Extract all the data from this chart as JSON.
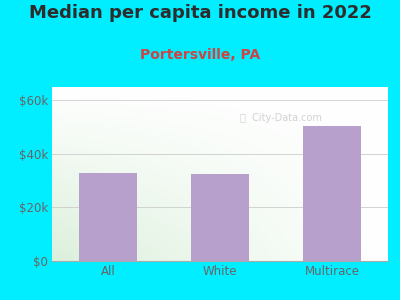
{
  "title": "Median per capita income in 2022",
  "subtitle": "Portersville, PA",
  "categories": [
    "All",
    "White",
    "Multirace"
  ],
  "values": [
    33000,
    32500,
    50500
  ],
  "bar_color": "#b8a0cc",
  "title_color": "#2d2d2d",
  "subtitle_color": "#cc4444",
  "tick_color": "#666666",
  "background_outer": "#00eeff",
  "ylim": [
    0,
    65000
  ],
  "yticks": [
    0,
    20000,
    40000,
    60000
  ],
  "ytick_labels": [
    "$0",
    "$20k",
    "$40k",
    "$60k"
  ],
  "watermark": "City-Data.com",
  "title_fontsize": 13,
  "subtitle_fontsize": 10,
  "tick_fontsize": 8.5
}
